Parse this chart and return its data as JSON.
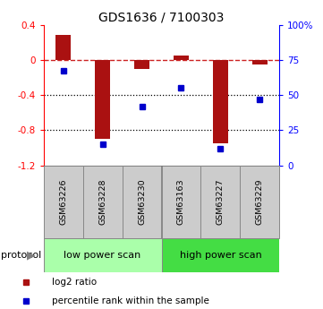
{
  "title": "GDS1636 / 7100303",
  "categories": [
    "GSM63226",
    "GSM63228",
    "GSM63230",
    "GSM63163",
    "GSM63227",
    "GSM63229"
  ],
  "log2_ratio": [
    0.28,
    -0.9,
    -0.1,
    0.05,
    -0.95,
    -0.05
  ],
  "percentile_rank": [
    67,
    15,
    42,
    55,
    12,
    47
  ],
  "group_labels": [
    "low power scan",
    "high power scan"
  ],
  "group_colors": [
    "#aaffaa",
    "#44dd44"
  ],
  "group_splits": [
    3
  ],
  "bar_color": "#aa1111",
  "point_color": "#0000cc",
  "ylim_left": [
    -1.2,
    0.4
  ],
  "ylim_right": [
    0,
    100
  ],
  "yticks_left": [
    -1.2,
    -0.8,
    -0.4,
    0.0,
    0.4
  ],
  "yticks_right": [
    0,
    25,
    50,
    75,
    100
  ],
  "ytick_labels_left": [
    "-1.2",
    "-0.8",
    "-0.4",
    "0",
    "0.4"
  ],
  "ytick_labels_right": [
    "0",
    "25",
    "50",
    "75",
    "100%"
  ],
  "hlines_dotted": [
    -0.4,
    -0.8
  ],
  "zero_line_color": "#cc2222",
  "dotted_line_color": "#000000",
  "protocol_label": "protocol",
  "legend_items": [
    "log2 ratio",
    "percentile rank within the sample"
  ],
  "background_color": "#ffffff",
  "tick_bg_color": "#cccccc",
  "bar_width": 0.4
}
